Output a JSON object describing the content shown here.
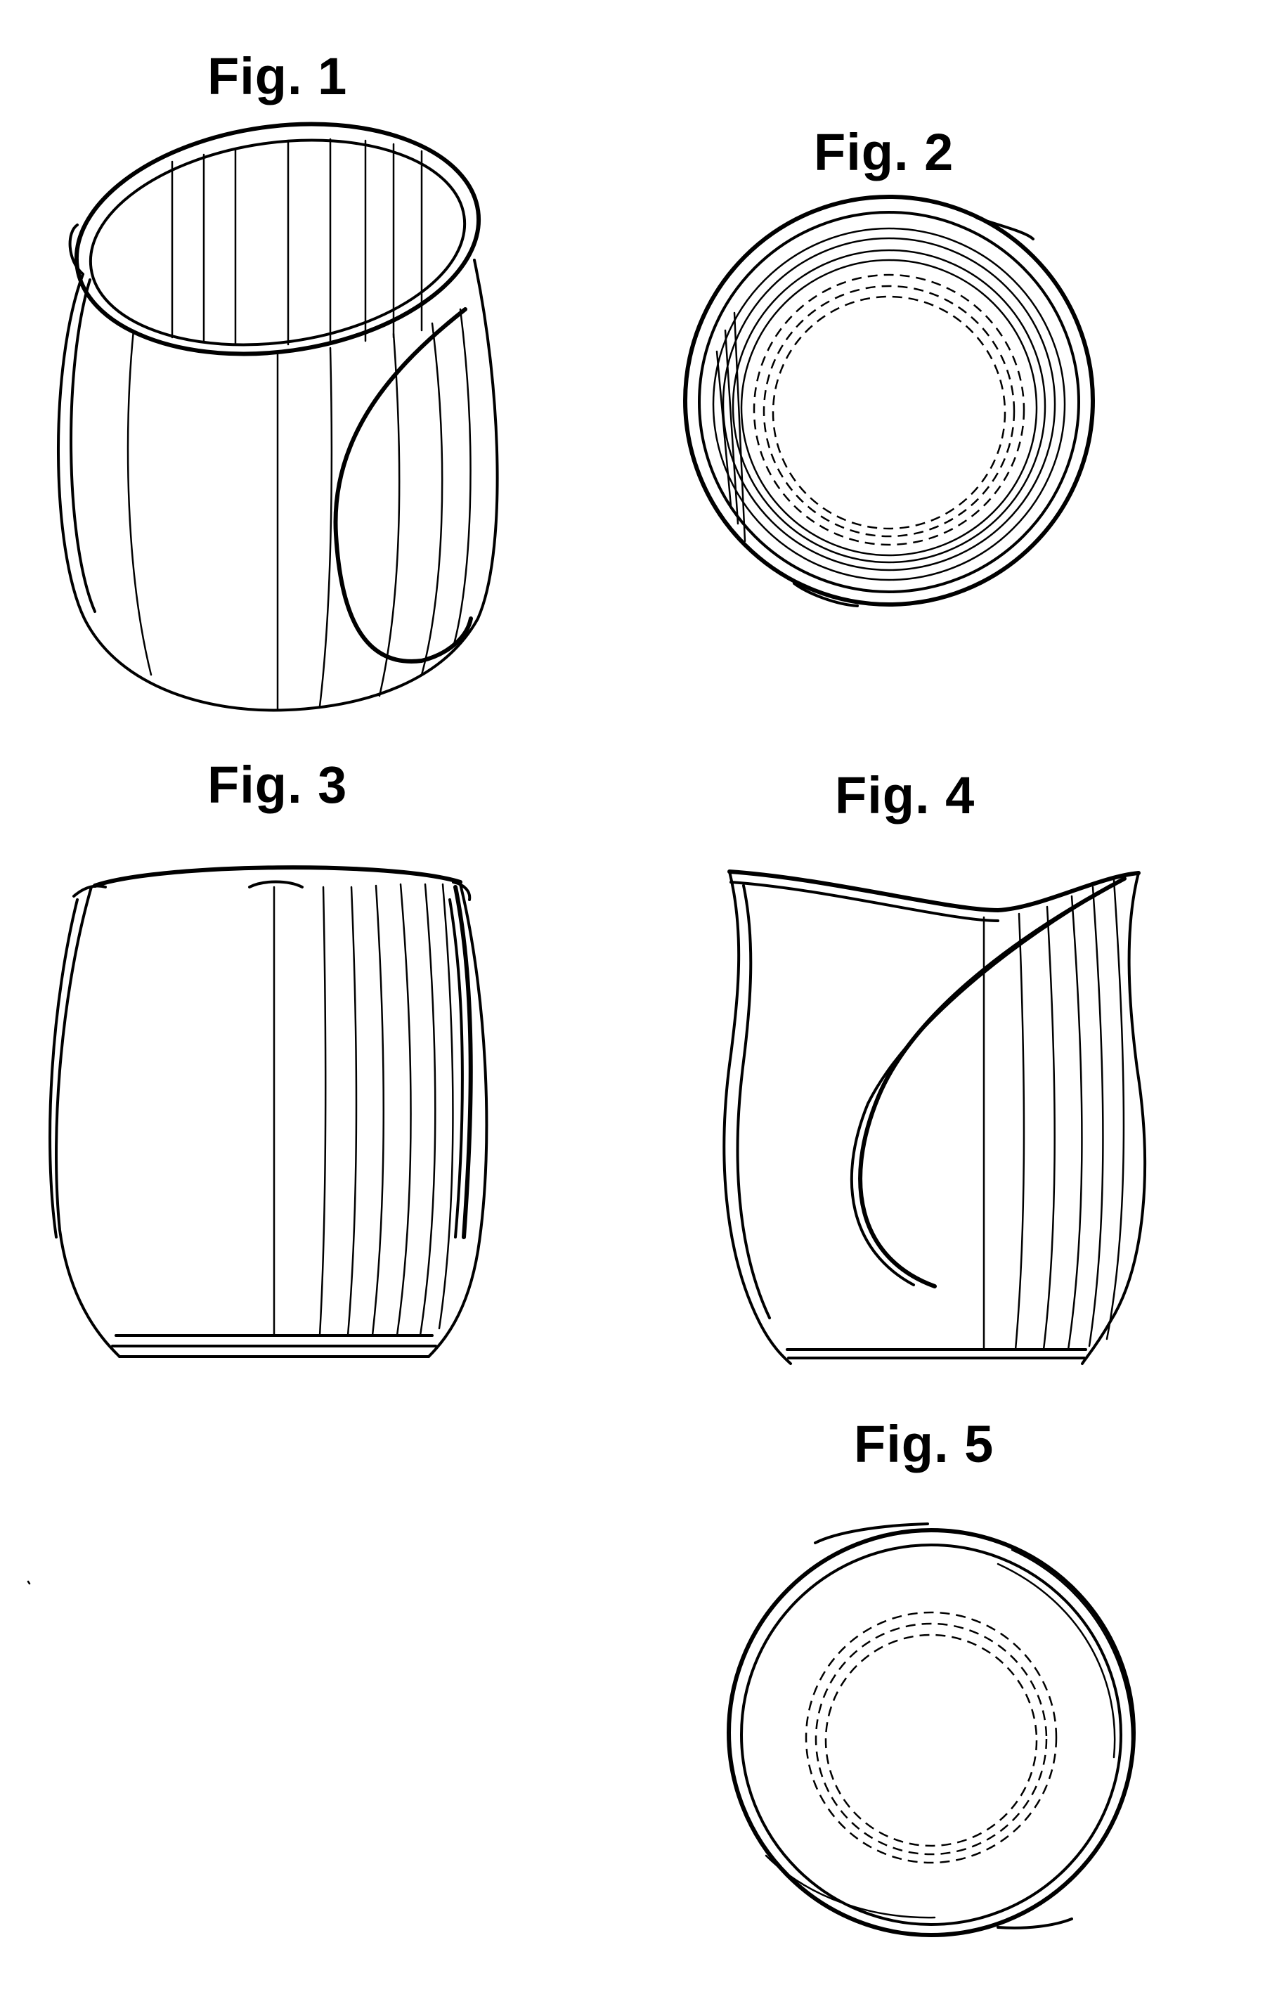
{
  "figures": [
    {
      "id": "fig1",
      "label": "Fig. 1",
      "view": "perspective"
    },
    {
      "id": "fig2",
      "label": "Fig. 2",
      "view": "top"
    },
    {
      "id": "fig3",
      "label": "Fig. 3",
      "view": "front"
    },
    {
      "id": "fig4",
      "label": "Fig. 4",
      "view": "side"
    },
    {
      "id": "fig5",
      "label": "Fig. 5",
      "view": "bottom"
    }
  ],
  "style": {
    "background": "#ffffff",
    "ink": "#000000"
  }
}
